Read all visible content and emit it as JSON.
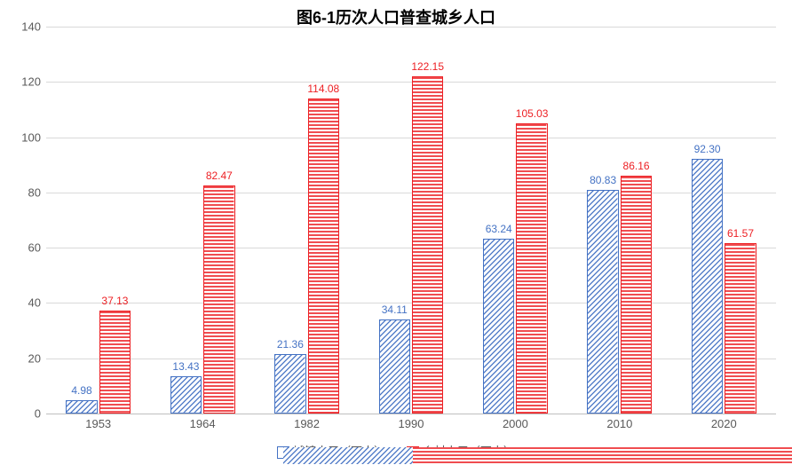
{
  "chart": {
    "type": "bar",
    "title": "图6-1历次人口普查城乡人口",
    "title_fontsize": 18,
    "title_color": "#000000",
    "background_color": "#ffffff",
    "grid_color": "#d9d9d9",
    "axis_color": "#bfbfbf",
    "tick_color": "#595959",
    "tick_fontsize": 13,
    "label_fontsize": 12,
    "ylim": [
      0,
      140
    ],
    "ytick_step": 20,
    "yticks": [
      0,
      20,
      40,
      60,
      80,
      100,
      120,
      140
    ],
    "categories": [
      "1953",
      "1964",
      "1982",
      "1990",
      "2000",
      "2010",
      "2020"
    ],
    "series": [
      {
        "name": "城镇人口（万人）",
        "key": "urban",
        "color": "#4472c4",
        "pattern": "diagonal-hatch",
        "values": [
          4.98,
          13.43,
          21.36,
          34.11,
          63.24,
          80.83,
          92.3
        ],
        "labels": [
          "4.98",
          "13.43",
          "21.36",
          "34.11",
          "63.24",
          "80.83",
          "92.30"
        ]
      },
      {
        "name": "乡村人口（万人）",
        "key": "rural",
        "color": "#ed2024",
        "pattern": "horizontal-hatch",
        "values": [
          37.13,
          82.47,
          114.08,
          122.15,
          105.03,
          86.16,
          61.57
        ],
        "labels": [
          "37.13",
          "82.47",
          "114.08",
          "122.15",
          "105.03",
          "86.16",
          "61.57"
        ]
      }
    ],
    "legend_position": "bottom",
    "bar_group_width": 0.62,
    "bar_gap": 2
  }
}
